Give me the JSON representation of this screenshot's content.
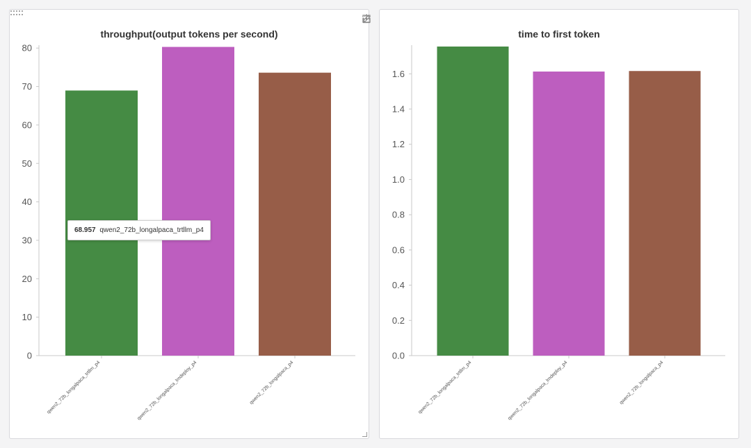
{
  "chart_data": [
    {
      "type": "bar",
      "title": "throughput(output tokens per second)",
      "xlabel": "",
      "ylabel": "",
      "categories": [
        "qwen2_72b_longalpaca_trtllm_p4",
        "qwen2_72b_longalpaca_lmdeploy_p4",
        "qwen2_72b_longalpaca_p4"
      ],
      "values": [
        68.957,
        80.3,
        73.6
      ],
      "colors": [
        "#458b44",
        "#bd5ebf",
        "#975d48"
      ],
      "ylim": [
        0,
        80.4
      ],
      "yticks": [
        0,
        10,
        20,
        30,
        40,
        50,
        60,
        70,
        80
      ],
      "grid": false,
      "tooltip": {
        "value": "68.957",
        "label": "qwen2_72b_longalpaca_trtllm_p4"
      }
    },
    {
      "type": "bar",
      "title": "time to first token",
      "xlabel": "",
      "ylabel": "",
      "categories": [
        "qwen2_72b_longalpaca_trtllm_p4",
        "qwen2_72b_longalpaca_lmdeploy_p4",
        "qwen2_72b_longalpaca_p4"
      ],
      "values": [
        1.755,
        1.613,
        1.616
      ],
      "colors": [
        "#458b44",
        "#bd5ebf",
        "#975d48"
      ],
      "ylim": [
        0,
        1.755
      ],
      "yticks": [
        0.0,
        0.2,
        0.4,
        0.6,
        0.8,
        1.0,
        1.2,
        1.4,
        1.6
      ],
      "ytick_labels": [
        "0.0",
        "0.2",
        "0.4",
        "0.6",
        "0.8",
        "1.0",
        "1.2",
        "1.4",
        "1.6"
      ],
      "grid": false
    }
  ],
  "toolbar": {
    "icons": [
      "share-icon",
      "edit-icon",
      "fullscreen-icon",
      "more-icon"
    ]
  }
}
